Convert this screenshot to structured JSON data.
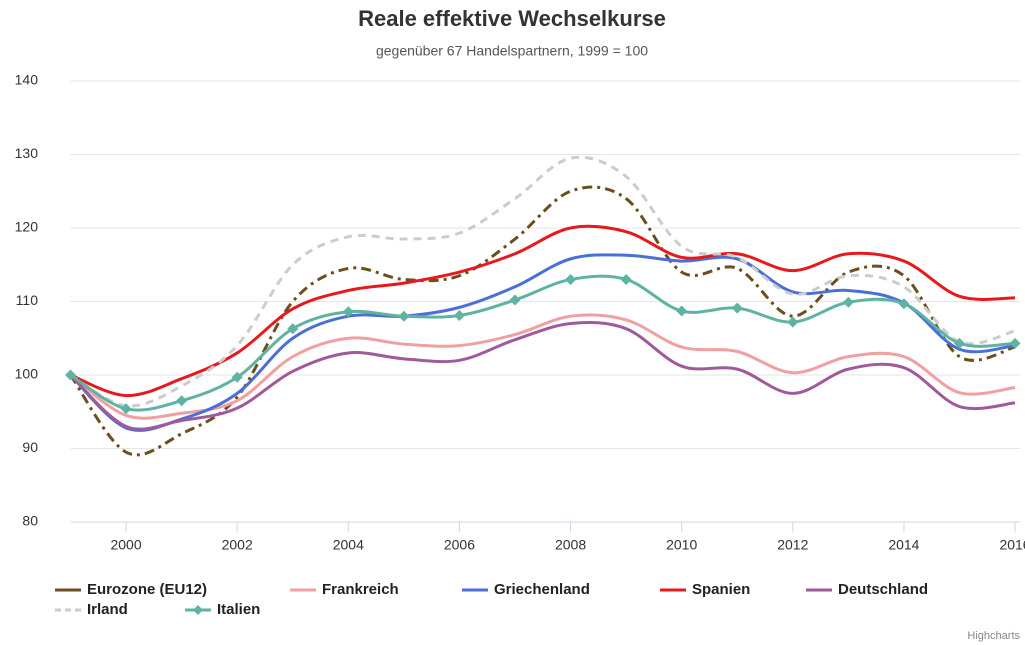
{
  "chart_data": {
    "type": "line",
    "title": "Reale effektive Wechselkurse",
    "subtitle": "gegenüber 67 Handelspartnern, 1999 = 100",
    "credits": "Highcharts",
    "x": [
      1999,
      2000,
      2001,
      2002,
      2003,
      2004,
      2005,
      2006,
      2007,
      2008,
      2009,
      2010,
      2011,
      2012,
      2013,
      2014,
      2015,
      2016
    ],
    "xlim": [
      1999,
      2016.1
    ],
    "xticks": [
      2000,
      2002,
      2004,
      2006,
      2008,
      2010,
      2012,
      2014,
      2016
    ],
    "ylim": [
      80,
      140
    ],
    "yticks": [
      80,
      90,
      100,
      110,
      120,
      130,
      140
    ],
    "grid": true,
    "legend": "bottom",
    "series": [
      {
        "name": "Eurozone (EU12)",
        "color": "#6b4f1f",
        "dash": "dashdot",
        "values": [
          100,
          89.5,
          92,
          97,
          110,
          114.5,
          113,
          113.5,
          118.5,
          125,
          124,
          114,
          114.5,
          108,
          114,
          113.5,
          102.5,
          103.8
        ]
      },
      {
        "name": "Frankreich",
        "color": "#f0a0a0",
        "values": [
          100,
          94.5,
          94.8,
          96.5,
          102.5,
          105,
          104.2,
          104,
          105.5,
          108,
          107.5,
          103.8,
          103.2,
          100.3,
          102.5,
          102.5,
          97.6,
          98.3
        ]
      },
      {
        "name": "Griechenland",
        "color": "#4a6fd6",
        "values": [
          100,
          92.8,
          94,
          97.5,
          105,
          108,
          108,
          109.2,
          112,
          115.8,
          116.3,
          115.5,
          115.8,
          111.3,
          111.5,
          109.8,
          103.5,
          104
        ]
      },
      {
        "name": "Spanien",
        "color": "#e8191c",
        "values": [
          100,
          97.2,
          99.5,
          103,
          109,
          111.5,
          112.5,
          114,
          116.5,
          120,
          119.5,
          116,
          116.5,
          114.2,
          116.5,
          115.5,
          110.7,
          110.5
        ]
      },
      {
        "name": "Deutschland",
        "color": "#a05a9a",
        "values": [
          100,
          93,
          93.8,
          95.5,
          100.5,
          103,
          102.2,
          102,
          104.8,
          107,
          106.3,
          101.2,
          100.8,
          97.5,
          100.8,
          101,
          95.7,
          96.2
        ]
      },
      {
        "name": "Irland",
        "color": "#cccccc",
        "dash": "dash",
        "values": [
          100,
          95.8,
          98.5,
          104,
          115,
          118.8,
          118.5,
          119.3,
          124,
          129.5,
          127,
          117.5,
          116,
          111,
          113.5,
          112,
          104.5,
          106
        ]
      },
      {
        "name": "Italien",
        "color": "#5fb3a3",
        "marker": "diamond",
        "values": [
          100,
          95.4,
          96.5,
          99.7,
          106.3,
          108.6,
          108,
          108.1,
          110.2,
          113,
          113,
          108.7,
          109.1,
          107.2,
          109.9,
          109.7,
          104.3,
          104.3
        ]
      }
    ]
  }
}
